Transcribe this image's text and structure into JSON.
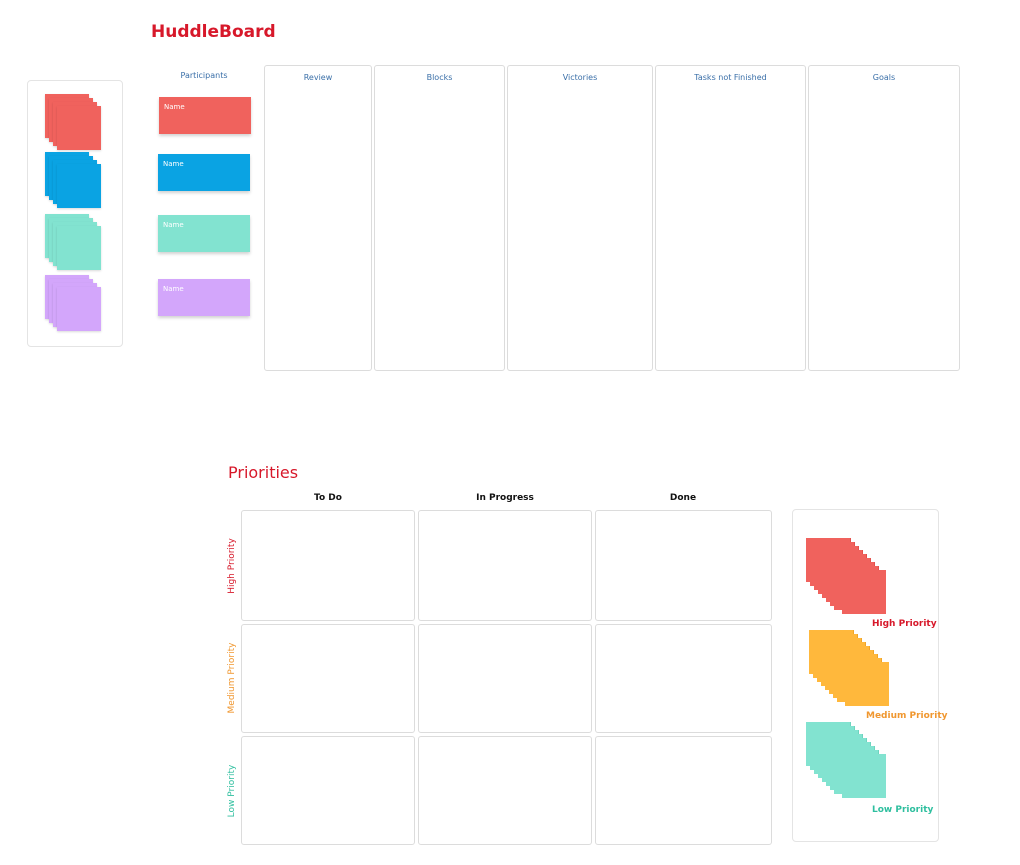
{
  "huddle": {
    "title": "HuddleBoard",
    "participants_label": "Participants",
    "participants": [
      {
        "label": "Name",
        "color": "#f0625d"
      },
      {
        "label": "Name",
        "color": "#0aa3e3"
      },
      {
        "label": "Name",
        "color": "#82e3d0"
      },
      {
        "label": "Name",
        "color": "#d3a6fb"
      }
    ],
    "columns": [
      "Review",
      "Blocks",
      "Victories",
      "Tasks not Finished",
      "Goals"
    ],
    "sticky_palette": [
      "#f0625d",
      "#0aa3e3",
      "#82e3d0",
      "#d3a6fb"
    ]
  },
  "priorities": {
    "title": "Priorities",
    "columns": [
      "To Do",
      "In Progress",
      "Done"
    ],
    "rows": [
      {
        "label": "High Priority",
        "color": "#d7182a"
      },
      {
        "label": "Medium Priority",
        "color": "#f0972f"
      },
      {
        "label": "Low Priority",
        "color": "#2fbf9f"
      }
    ],
    "legend": [
      {
        "label": "High Priority",
        "color": "#f0625d",
        "text_color": "#d7182a"
      },
      {
        "label": "Medium Priority",
        "color": "#ffb83c",
        "text_color": "#f0972f"
      },
      {
        "label": "Low Priority",
        "color": "#82e3d0",
        "text_color": "#2fbf9f"
      }
    ]
  }
}
